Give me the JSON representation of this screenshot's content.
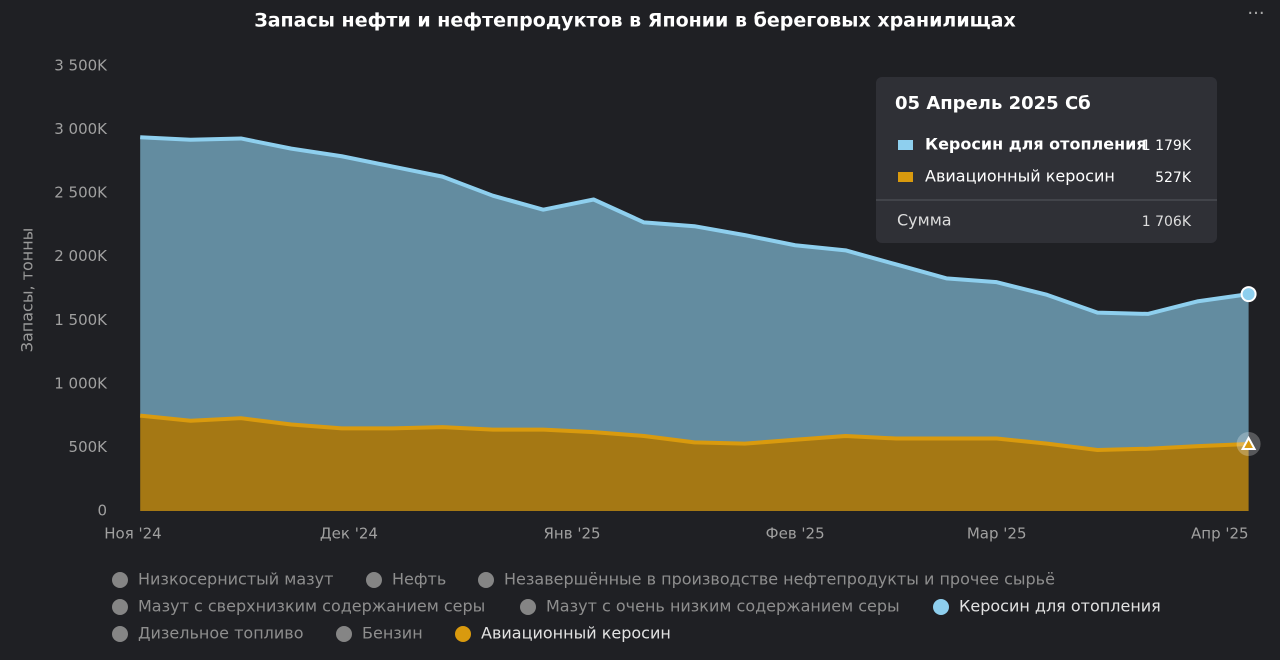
{
  "chart_data": {
    "type": "stacked-area",
    "title": "Запасы нефти и нефтепродуктов в Японии в береговых хранилищах",
    "y_label": "Запасы, тонны",
    "x": [
      "2024-11-02",
      "2024-11-09",
      "2024-11-16",
      "2024-11-23",
      "2024-11-30",
      "2024-12-07",
      "2024-12-14",
      "2024-12-21",
      "2024-12-28",
      "2025-01-04",
      "2025-01-11",
      "2025-01-18",
      "2025-01-25",
      "2025-02-01",
      "2025-02-08",
      "2025-02-15",
      "2025-02-22",
      "2025-03-01",
      "2025-03-08",
      "2025-03-15",
      "2025-03-22",
      "2025-03-29",
      "2025-04-05"
    ],
    "series": [
      {
        "name": "Керосин для отопления",
        "color": "#8ecfee",
        "values": [
          2190000,
          2210000,
          2200000,
          2170000,
          2140000,
          2060000,
          1970000,
          1840000,
          1730000,
          1830000,
          1680000,
          1700000,
          1640000,
          1530000,
          1460000,
          1370000,
          1260000,
          1230000,
          1170000,
          1080000,
          1060000,
          1140000,
          1179000
        ]
      },
      {
        "name": "Авиационный керосин",
        "color": "#d99a0e",
        "values": [
          750000,
          710000,
          730000,
          680000,
          650000,
          650000,
          660000,
          640000,
          640000,
          620000,
          590000,
          540000,
          530000,
          560000,
          590000,
          570000,
          570000,
          570000,
          530000,
          480000,
          490000,
          510000,
          527000
        ]
      }
    ],
    "xlim": [
      "2024-11-01",
      "2025-04-07"
    ],
    "xticks": [
      {
        "value": "2024-11-01",
        "label": "Ноя '24"
      },
      {
        "value": "2024-12-01",
        "label": "Дек '24"
      },
      {
        "value": "2025-01-01",
        "label": "Янв '25"
      },
      {
        "value": "2025-02-01",
        "label": "Фев '25"
      },
      {
        "value": "2025-03-01",
        "label": "Мар '25"
      },
      {
        "value": "2025-04-01",
        "label": "Апр '25"
      }
    ],
    "ylim": [
      0,
      3500000
    ],
    "yticks": [
      0,
      {
        "value": 500000,
        "label": "500K"
      },
      {
        "value": 1000000,
        "label": "1 000K"
      },
      {
        "value": 1500000,
        "label": "1 500K"
      },
      {
        "value": 2000000,
        "label": "2 000K"
      },
      {
        "value": 2500000,
        "label": "2 500K"
      },
      {
        "value": 3000000,
        "label": "3 000K"
      },
      {
        "value": 3500000,
        "label": "3 500K"
      }
    ],
    "grid": true,
    "tooltip": {
      "date": "05 Апрель 2025 Сб",
      "values": [
        {
          "value": 1179000,
          "label": "1 179K"
        },
        {
          "value": 527000,
          "label": "527K"
        }
      ],
      "total_label": "Сумма",
      "total": {
        "value": 1706000,
        "label": "1 706K"
      }
    },
    "legend_inactive": [
      "Низкосернистый мазут",
      "Нефть",
      "Незавершённые в производстве нефтепродукты и прочее сырьё",
      "Мазут с сверхнизким содержанием серы",
      "Мазут с очень низким содержанием серы",
      "Дизельное топливо",
      "Бензин"
    ],
    "inactive_color": "#858585"
  }
}
